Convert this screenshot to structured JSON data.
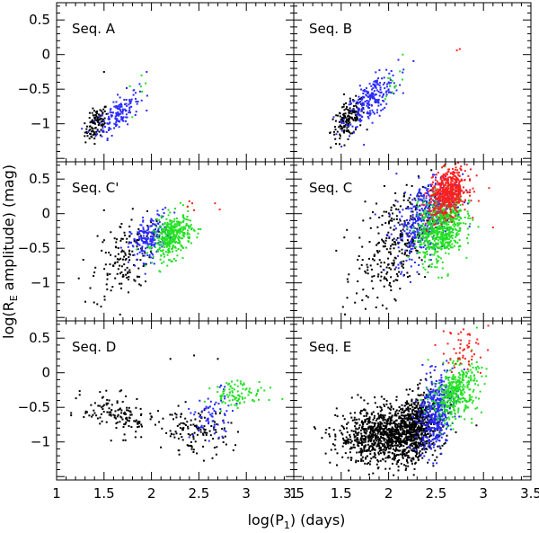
{
  "chart_data": {
    "type": "scatter",
    "xlabel": "log(P1) (days)",
    "ylabel": "log(RE amplitude) (mag)",
    "xlim": [
      1.0,
      3.5
    ],
    "ylim": [
      -1.55,
      0.75
    ],
    "xticks": [
      1,
      1.5,
      2,
      2.5,
      3,
      3.5
    ],
    "xtick_labels": [
      "1",
      "1.5",
      "2",
      "2.5",
      "3",
      "3.5"
    ],
    "yticks": [
      -1,
      -0.5,
      0,
      0.5
    ],
    "ytick_labels": [
      "−1",
      "−0.5",
      "0",
      "0.5"
    ],
    "grid": false,
    "layout": "3 rows x 2 columns, shared axes",
    "series_colors": {
      "black": "#000000",
      "blue": "#2a2aff",
      "green": "#22e022",
      "red": "#ff2020"
    },
    "panels": [
      {
        "title": "Seq. A",
        "clusters": [
          {
            "color": "black",
            "n": 110,
            "cx": 1.42,
            "cy": -1.0,
            "sx": 0.06,
            "sy": 0.12,
            "rho": 0.5
          },
          {
            "color": "blue",
            "n": 150,
            "cx": 1.65,
            "cy": -0.85,
            "sx": 0.11,
            "sy": 0.16,
            "rho": 0.65
          },
          {
            "color": "green",
            "n": 6,
            "cx": 1.85,
            "cy": -0.55,
            "sx": 0.05,
            "sy": 0.1,
            "rho": 0.3
          }
        ],
        "points": [
          {
            "x": 1.5,
            "y": -0.25,
            "color": "black"
          },
          {
            "x": 1.95,
            "y": -0.25,
            "color": "blue"
          }
        ]
      },
      {
        "title": "Seq. B",
        "clusters": [
          {
            "color": "black",
            "n": 150,
            "cx": 1.57,
            "cy": -0.95,
            "sx": 0.09,
            "sy": 0.15,
            "rho": 0.55
          },
          {
            "color": "blue",
            "n": 230,
            "cx": 1.82,
            "cy": -0.65,
            "sx": 0.14,
            "sy": 0.2,
            "rho": 0.7
          },
          {
            "color": "green",
            "n": 12,
            "cx": 2.05,
            "cy": -0.4,
            "sx": 0.06,
            "sy": 0.12,
            "rho": 0.4
          }
        ],
        "points": [
          {
            "x": 2.15,
            "y": 0.0,
            "color": "green"
          },
          {
            "x": 2.75,
            "y": 0.08,
            "color": "red"
          },
          {
            "x": 2.72,
            "y": 0.06,
            "color": "red"
          }
        ]
      },
      {
        "title": "Seq. C'",
        "clusters": [
          {
            "color": "black",
            "n": 150,
            "cx": 1.7,
            "cy": -0.65,
            "sx": 0.16,
            "sy": 0.3,
            "rho": 0.4
          },
          {
            "color": "blue",
            "n": 200,
            "cx": 1.98,
            "cy": -0.35,
            "sx": 0.1,
            "sy": 0.17,
            "rho": 0.4
          },
          {
            "color": "green",
            "n": 360,
            "cx": 2.22,
            "cy": -0.33,
            "sx": 0.1,
            "sy": 0.16,
            "rho": 0.35
          }
        ],
        "points": [
          {
            "x": 1.5,
            "y": 0.05,
            "color": "black"
          },
          {
            "x": 2.38,
            "y": 0.1,
            "color": "red"
          },
          {
            "x": 2.4,
            "y": 0.18,
            "color": "red"
          },
          {
            "x": 2.43,
            "y": 0.15,
            "color": "red"
          },
          {
            "x": 2.45,
            "y": 0.05,
            "color": "red"
          },
          {
            "x": 2.67,
            "y": 0.15,
            "color": "red"
          },
          {
            "x": 2.72,
            "y": 0.06,
            "color": "red"
          }
        ]
      },
      {
        "title": "Seq. C",
        "clusters": [
          {
            "color": "black",
            "n": 300,
            "cx": 2.05,
            "cy": -0.45,
            "sx": 0.2,
            "sy": 0.4,
            "rho": 0.45
          },
          {
            "color": "blue",
            "n": 450,
            "cx": 2.4,
            "cy": -0.05,
            "sx": 0.16,
            "sy": 0.3,
            "rho": 0.5
          },
          {
            "color": "green",
            "n": 650,
            "cx": 2.55,
            "cy": -0.2,
            "sx": 0.12,
            "sy": 0.25,
            "rho": 0.3
          },
          {
            "color": "red",
            "n": 550,
            "cx": 2.63,
            "cy": 0.3,
            "sx": 0.1,
            "sy": 0.17,
            "rho": 0.3
          }
        ],
        "points": [
          {
            "x": 3.1,
            "y": -0.2,
            "color": "red"
          }
        ]
      },
      {
        "title": "Seq. D",
        "clusters": [
          {
            "color": "black",
            "n": 130,
            "cx": 1.65,
            "cy": -0.62,
            "sx": 0.18,
            "sy": 0.15,
            "rho": -0.4
          },
          {
            "color": "black",
            "n": 130,
            "cx": 2.45,
            "cy": -0.85,
            "sx": 0.18,
            "sy": 0.17,
            "rho": -0.2
          },
          {
            "color": "blue",
            "n": 70,
            "cx": 2.65,
            "cy": -0.6,
            "sx": 0.12,
            "sy": 0.18,
            "rho": 0.4
          },
          {
            "color": "green",
            "n": 90,
            "cx": 2.92,
            "cy": -0.3,
            "sx": 0.14,
            "sy": 0.1,
            "rho": 0.2
          }
        ],
        "points": [
          {
            "x": 2.2,
            "y": 0.2,
            "color": "black"
          },
          {
            "x": 2.45,
            "y": 0.25,
            "color": "black"
          },
          {
            "x": 2.7,
            "y": 0.2,
            "color": "black"
          },
          {
            "x": 3.38,
            "y": -0.38,
            "color": "green"
          }
        ]
      },
      {
        "title": "Seq. E",
        "clusters": [
          {
            "color": "black",
            "n": 1100,
            "cx": 2.0,
            "cy": -0.9,
            "sx": 0.26,
            "sy": 0.2,
            "rho": 0.1
          },
          {
            "color": "black",
            "n": 400,
            "cx": 2.3,
            "cy": -0.75,
            "sx": 0.1,
            "sy": 0.25,
            "rho": 0.3
          },
          {
            "color": "blue",
            "n": 420,
            "cx": 2.5,
            "cy": -0.55,
            "sx": 0.09,
            "sy": 0.28,
            "rho": 0.3
          },
          {
            "color": "green",
            "n": 380,
            "cx": 2.7,
            "cy": -0.28,
            "sx": 0.12,
            "sy": 0.2,
            "rho": 0.3
          },
          {
            "color": "red",
            "n": 50,
            "cx": 2.78,
            "cy": 0.3,
            "sx": 0.12,
            "sy": 0.18,
            "rho": 0.3
          }
        ],
        "points": [
          {
            "x": 2.58,
            "y": 0.6,
            "color": "red"
          },
          {
            "x": 2.65,
            "y": 0.58,
            "color": "red"
          },
          {
            "x": 3.05,
            "y": 0.68,
            "color": "red"
          }
        ]
      }
    ]
  }
}
